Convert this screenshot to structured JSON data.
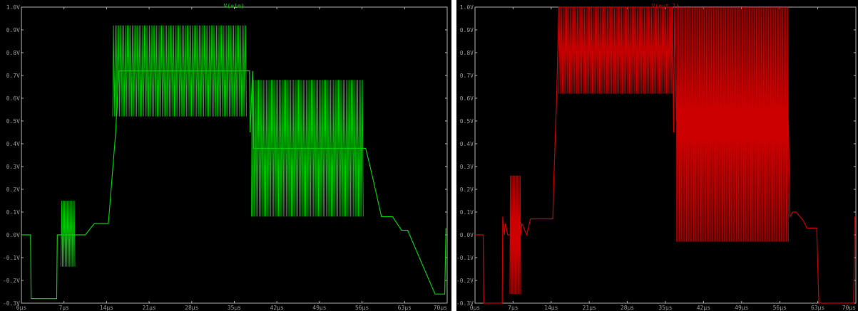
{
  "chart_data": [
    {
      "type": "line",
      "title": "V(vin)",
      "color": "#00cc00",
      "xlim": [
        0,
        70
      ],
      "ylim": [
        -0.3,
        1.0
      ],
      "xticks": [
        "0µs",
        "7µs",
        "14µs",
        "21µs",
        "28µs",
        "35µs",
        "42µs",
        "49µs",
        "56µs",
        "63µs",
        "70µs"
      ],
      "yticks": [
        "1.0V",
        "0.9V",
        "0.8V",
        "0.7V",
        "0.6V",
        "0.5V",
        "0.4V",
        "0.3V",
        "0.2V",
        "0.1V",
        "0.0V",
        "-0.1V",
        "-0.2V",
        "-0.3V"
      ],
      "series": [
        {
          "x": [
            0,
            1.5,
            1.6,
            5.8,
            5.9,
            6.4,
            8.9,
            9.0,
            10.5,
            12.0,
            14.0,
            14.3,
            15.5,
            16.0,
            37.5,
            37.6,
            38.0,
            38.2,
            56.4,
            56.6,
            57.5,
            59.2,
            61.0,
            62.5,
            63.5,
            68.0,
            69.6,
            69.8
          ],
          "y": [
            0.0,
            0.0,
            -0.28,
            -0.28,
            0.0,
            0.0,
            0.0,
            0.0,
            0.0,
            0.05,
            0.05,
            0.05,
            0.45,
            0.72,
            0.72,
            0.45,
            0.72,
            0.38,
            0.38,
            0.38,
            0.28,
            0.08,
            0.08,
            0.02,
            0.02,
            -0.26,
            -0.26,
            0.03
          ]
        }
      ],
      "bursts": [
        {
          "x_start": 6.5,
          "x_end": 8.8,
          "y_low": -0.14,
          "y_high": 0.15,
          "cycles": 10
        },
        {
          "x_start": 15.0,
          "x_end": 37.0,
          "y_low": 0.52,
          "y_high": 0.92,
          "cycles": 78
        },
        {
          "x_start": 37.8,
          "x_end": 56.2,
          "y_low": 0.08,
          "y_high": 0.68,
          "cycles": 70
        }
      ]
    },
    {
      "type": "line",
      "title": "V(out 1)",
      "color": "#cc0000",
      "xlim": [
        0,
        70
      ],
      "ylim": [
        -0.3,
        1.0
      ],
      "xticks": [
        "0µs",
        "7µs",
        "14µs",
        "21µs",
        "28µs",
        "35µs",
        "42µs",
        "49µs",
        "56µs",
        "63µs",
        "70µs"
      ],
      "yticks": [
        "1.0V",
        "0.9V",
        "0.8V",
        "0.7V",
        "0.6V",
        "0.5V",
        "0.4V",
        "0.3V",
        "0.2V",
        "0.1V",
        "0.0V",
        "-0.1V",
        "-0.2V",
        "-0.3V"
      ],
      "series": [
        {
          "x": [
            0,
            1.5,
            1.6,
            5.0,
            5.1,
            5.4,
            5.6,
            6.0,
            6.4,
            8.4,
            8.6,
            9.5,
            10.2,
            12.0,
            14.3,
            14.5,
            15.0,
            15.4,
            36.3,
            36.5,
            36.7,
            37.0,
            57.6,
            57.9,
            58.4,
            59.0,
            60.4,
            61.0,
            62.8,
            63.2,
            63.8,
            69.6,
            69.8
          ],
          "y": [
            0.0,
            0.0,
            -0.3,
            -0.3,
            0.08,
            0.0,
            0.05,
            0.0,
            0.0,
            0.0,
            0.05,
            0.0,
            0.07,
            0.07,
            0.07,
            0.25,
            0.6,
            1.0,
            1.0,
            0.45,
            1.0,
            0.5,
            0.5,
            0.08,
            0.1,
            0.1,
            0.06,
            0.03,
            0.03,
            -0.3,
            -0.3,
            -0.3,
            0.08
          ]
        }
      ],
      "bursts": [
        {
          "x_start": 6.4,
          "x_end": 8.4,
          "y_low": -0.26,
          "y_high": 0.26,
          "cycles": 12
        },
        {
          "x_start": 15.4,
          "x_end": 36.3,
          "y_low": 0.62,
          "y_high": 1.0,
          "cycles": 95
        },
        {
          "x_start": 37.0,
          "x_end": 57.6,
          "y_low": -0.03,
          "y_high": 1.0,
          "cycles": 110
        }
      ]
    }
  ]
}
